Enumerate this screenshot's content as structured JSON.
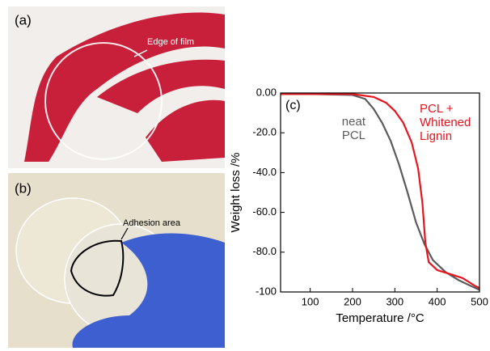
{
  "panels": {
    "a": {
      "label": "(a)",
      "annotation": "Edge of film"
    },
    "b": {
      "label": "(b)",
      "annotation": "Adhesion area"
    }
  },
  "chart_data": {
    "type": "line",
    "panel_label": "(c)",
    "x_label": "Temperature /°C",
    "y_label": "Weight loss /%",
    "xlim": [
      30,
      500
    ],
    "xticks": [
      100,
      200,
      300,
      400,
      500
    ],
    "ylim": [
      -100,
      0
    ],
    "yticks": [
      {
        "value": 0,
        "label": "0.00"
      },
      {
        "value": -20,
        "label": "-20.0"
      },
      {
        "value": -40,
        "label": "-40.0"
      },
      {
        "value": -60,
        "label": "-60.0"
      },
      {
        "value": -80,
        "label": "-80.0"
      },
      -100
    ],
    "series": [
      {
        "name": "neat PCL",
        "color": "#5a5a5a",
        "x": [
          30,
          100,
          200,
          230,
          250,
          270,
          290,
          310,
          330,
          350,
          370,
          390,
          420,
          450,
          480,
          500
        ],
        "values": [
          -0.5,
          -0.5,
          -1,
          -3,
          -8,
          -15,
          -24,
          -36,
          -50,
          -65,
          -76,
          -84,
          -90,
          -94,
          -97,
          -99
        ]
      },
      {
        "name": "PCL + Whitened Lignin",
        "color": "#e8141e",
        "x": [
          30,
          200,
          250,
          280,
          300,
          320,
          340,
          355,
          365,
          372,
          380,
          400,
          430,
          460,
          490,
          500
        ],
        "values": [
          -0.5,
          -0.5,
          -2,
          -5,
          -9,
          -15,
          -25,
          -38,
          -55,
          -75,
          -85,
          -89,
          -91,
          -93,
          -97,
          -98
        ]
      }
    ]
  }
}
